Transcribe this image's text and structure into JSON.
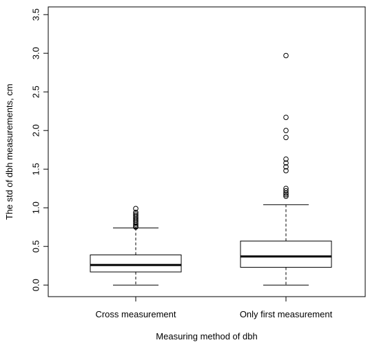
{
  "chart_data": {
    "type": "box",
    "title": "",
    "xlabel": "Measuring method of dbh",
    "ylabel": "The std of dbh measurements, cm",
    "ylim": [
      -0.15,
      3.6
    ],
    "yticks": [
      0.0,
      0.5,
      1.0,
      1.5,
      2.0,
      2.5,
      3.0,
      3.5
    ],
    "ytick_labels": [
      "0.0",
      "0.5",
      "1.0",
      "1.5",
      "2.0",
      "2.5",
      "3.0",
      "3.5"
    ],
    "grid": false,
    "categories": [
      "Cross measurement",
      "Only first measurement"
    ],
    "boxes": [
      {
        "name": "Cross measurement",
        "whisker_low": 0.0,
        "q1": 0.17,
        "median": 0.26,
        "q3": 0.39,
        "whisker_high": 0.74,
        "outliers": [
          0.75,
          0.76,
          0.78,
          0.8,
          0.82,
          0.84,
          0.86,
          0.88,
          0.9,
          0.92,
          0.94,
          0.99
        ]
      },
      {
        "name": "Only first measurement",
        "whisker_low": 0.0,
        "q1": 0.23,
        "median": 0.37,
        "q3": 0.57,
        "whisker_high": 1.04,
        "outliers": [
          1.15,
          1.17,
          1.19,
          1.22,
          1.25,
          1.48,
          1.53,
          1.58,
          1.63,
          1.91,
          2.0,
          2.17,
          2.97
        ]
      }
    ]
  }
}
